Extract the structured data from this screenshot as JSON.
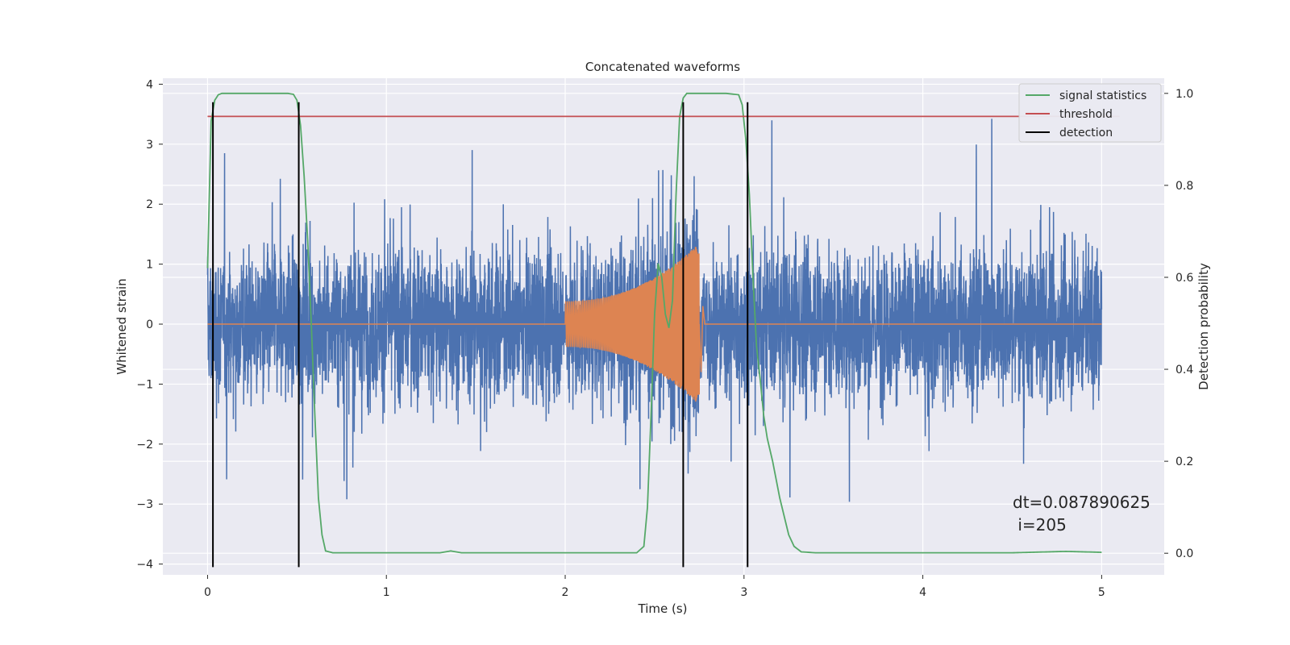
{
  "chart_data": {
    "type": "line",
    "title": "Concatenated waveforms",
    "xlabel": "Time (s)",
    "ylabel": "Whitened strain",
    "y2label": "Detection probability",
    "xlim": [
      -0.25,
      5.35
    ],
    "ylim": [
      -4.18,
      4.1
    ],
    "y2lim": [
      -0.047,
      1.033
    ],
    "x_ticks": [
      0,
      1,
      2,
      3,
      4,
      5
    ],
    "y_ticks": [
      -4,
      -3,
      -2,
      -1,
      0,
      1,
      2,
      3,
      4
    ],
    "y2_ticks": [
      0.0,
      0.2,
      0.4,
      0.6,
      0.8,
      1.0
    ],
    "grid": true,
    "legend": {
      "position": "top-right",
      "entries": [
        {
          "label": "signal statistics",
          "color": "#55a868"
        },
        {
          "label": "threshold",
          "color": "#c44e52"
        },
        {
          "label": "detection",
          "color": "#000000"
        }
      ]
    },
    "series": [
      {
        "name": "signal statistics",
        "axis": "right",
        "color": "#55a868",
        "x": [
          0.0,
          0.02,
          0.04,
          0.06,
          0.08,
          0.1,
          0.15,
          0.3,
          0.45,
          0.48,
          0.5,
          0.52,
          0.54,
          0.56,
          0.58,
          0.6,
          0.62,
          0.64,
          0.66,
          0.7,
          1.0,
          1.3,
          1.36,
          1.42,
          1.6,
          2.0,
          2.4,
          2.44,
          2.46,
          2.48,
          2.5,
          2.52,
          2.54,
          2.56,
          2.58,
          2.6,
          2.62,
          2.64,
          2.66,
          2.68,
          2.7,
          2.72,
          2.75,
          2.8,
          2.9,
          2.97,
          2.99,
          3.01,
          3.03,
          3.05,
          3.07,
          3.09,
          3.11,
          3.13,
          3.16,
          3.2,
          3.25,
          3.28,
          3.32,
          3.4,
          3.6,
          4.0,
          4.5,
          4.8,
          4.9,
          5.0
        ],
        "y": [
          0.62,
          0.94,
          0.985,
          0.997,
          1.0,
          1.0,
          1.0,
          1.0,
          1.0,
          0.998,
          0.985,
          0.93,
          0.82,
          0.68,
          0.5,
          0.3,
          0.12,
          0.04,
          0.005,
          0.001,
          0.001,
          0.001,
          0.005,
          0.001,
          0.001,
          0.001,
          0.001,
          0.015,
          0.1,
          0.3,
          0.52,
          0.63,
          0.6,
          0.52,
          0.49,
          0.55,
          0.78,
          0.95,
          0.99,
          1.0,
          1.0,
          1.0,
          1.0,
          1.0,
          1.0,
          0.997,
          0.975,
          0.9,
          0.78,
          0.6,
          0.45,
          0.38,
          0.3,
          0.25,
          0.2,
          0.12,
          0.04,
          0.015,
          0.003,
          0.001,
          0.001,
          0.001,
          0.001,
          0.004,
          0.003,
          0.002
        ]
      },
      {
        "name": "threshold",
        "axis": "right",
        "color": "#c44e52",
        "x": [
          0.0,
          5.1
        ],
        "y": [
          0.95,
          0.95
        ]
      }
    ],
    "noise": {
      "axis": "left",
      "color": "#4c72b0",
      "x_range": [
        0.0,
        5.0
      ],
      "typical_amplitude": 1.0,
      "peak_max": 3.45,
      "peak_min": -4.05
    },
    "injected_waveform": {
      "axis": "left",
      "color": "#dd8452",
      "x_range": [
        0.0,
        5.0
      ],
      "chirp_start": 2.0,
      "chirp_end": 2.75,
      "start_amplitude": 0.38,
      "end_amplitude": 1.35
    },
    "detections": {
      "axis": "left",
      "color": "#000000",
      "x": [
        0.03,
        0.51,
        2.66,
        3.02
      ],
      "y_range": [
        -4.05,
        3.7
      ]
    },
    "annotation": {
      "line1": "dt=0.087890625",
      "line2": " i=205"
    }
  }
}
